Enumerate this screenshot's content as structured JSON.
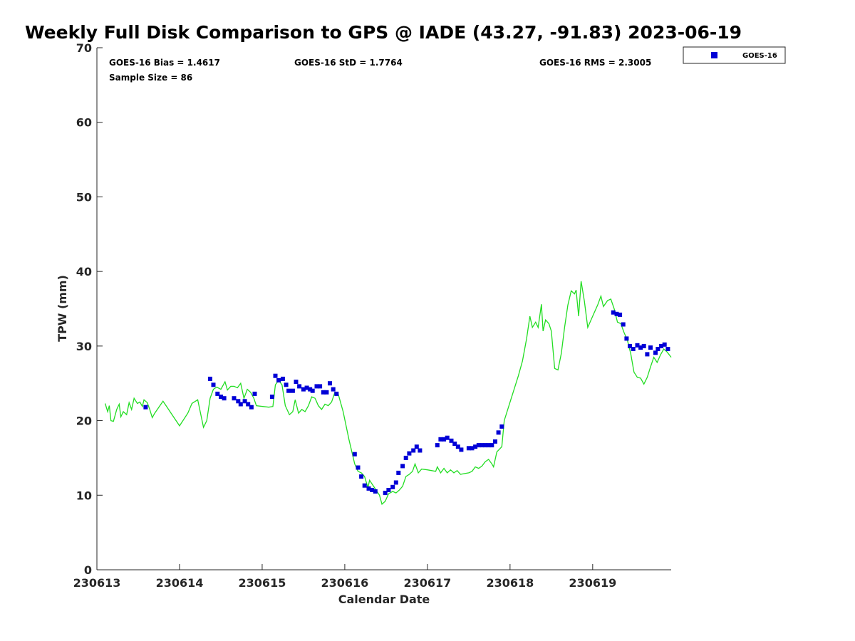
{
  "chart_data": {
    "type": "scatter",
    "title": "Weekly Full Disk Comparison to GPS @ IADE (43.27, -91.83) 2023-06-19",
    "xlabel": "Calendar Date",
    "ylabel": "TPW (mm)",
    "x_unit": "days",
    "xlim": [
      230613,
      230619.95
    ],
    "ylim": [
      0,
      70
    ],
    "y_ticks": [
      0,
      10,
      20,
      30,
      40,
      50,
      60,
      70
    ],
    "x_tick_labels": [
      "230613",
      "230614",
      "230615",
      "230616",
      "230617",
      "230618",
      "230619"
    ],
    "grid": false,
    "legend_position": "top-right",
    "colors": {
      "goes": "#0000d6",
      "gps": "#22dd22"
    },
    "stats": {
      "bias": "GOES-16 Bias = 1.4617",
      "std": "GOES-16 StD = 1.7764",
      "rms": "GOES-16 RMS = 2.3005",
      "sample": "Sample Size = 86"
    },
    "series": [
      {
        "name": "GOES-16",
        "style": "markers",
        "points": [
          [
            230613.59,
            21.8
          ],
          [
            230614.37,
            25.6
          ],
          [
            230614.41,
            24.8
          ],
          [
            230614.46,
            23.6
          ],
          [
            230614.5,
            23.2
          ],
          [
            230614.54,
            23.0
          ],
          [
            230614.66,
            23.0
          ],
          [
            230614.71,
            22.6
          ],
          [
            230614.74,
            22.2
          ],
          [
            230614.79,
            22.6
          ],
          [
            230614.83,
            22.2
          ],
          [
            230614.87,
            21.8
          ],
          [
            230614.91,
            23.6
          ],
          [
            230615.12,
            23.2
          ],
          [
            230615.16,
            26.0
          ],
          [
            230615.2,
            25.4
          ],
          [
            230615.25,
            25.6
          ],
          [
            230615.29,
            24.8
          ],
          [
            230615.32,
            24.0
          ],
          [
            230615.37,
            24.0
          ],
          [
            230615.41,
            25.2
          ],
          [
            230615.45,
            24.6
          ],
          [
            230615.5,
            24.2
          ],
          [
            230615.54,
            24.4
          ],
          [
            230615.58,
            24.2
          ],
          [
            230615.61,
            24.0
          ],
          [
            230615.66,
            24.6
          ],
          [
            230615.7,
            24.6
          ],
          [
            230615.74,
            23.8
          ],
          [
            230615.78,
            23.8
          ],
          [
            230615.82,
            25.0
          ],
          [
            230615.86,
            24.2
          ],
          [
            230615.9,
            23.6
          ],
          [
            230616.12,
            15.5
          ],
          [
            230616.16,
            13.7
          ],
          [
            230616.2,
            12.5
          ],
          [
            230616.24,
            11.3
          ],
          [
            230616.29,
            10.9
          ],
          [
            230616.33,
            10.7
          ],
          [
            230616.37,
            10.5
          ],
          [
            230616.49,
            10.3
          ],
          [
            230616.53,
            10.7
          ],
          [
            230616.58,
            11.1
          ],
          [
            230616.62,
            11.7
          ],
          [
            230616.65,
            13.0
          ],
          [
            230616.7,
            13.9
          ],
          [
            230616.74,
            15.0
          ],
          [
            230616.78,
            15.6
          ],
          [
            230616.83,
            16.0
          ],
          [
            230616.87,
            16.5
          ],
          [
            230616.91,
            16.0
          ],
          [
            230617.12,
            16.7
          ],
          [
            230617.16,
            17.5
          ],
          [
            230617.2,
            17.5
          ],
          [
            230617.24,
            17.7
          ],
          [
            230617.29,
            17.3
          ],
          [
            230617.33,
            16.9
          ],
          [
            230617.37,
            16.5
          ],
          [
            230617.41,
            16.1
          ],
          [
            230617.5,
            16.3
          ],
          [
            230617.54,
            16.3
          ],
          [
            230617.58,
            16.5
          ],
          [
            230617.62,
            16.7
          ],
          [
            230617.66,
            16.7
          ],
          [
            230617.7,
            16.7
          ],
          [
            230617.74,
            16.7
          ],
          [
            230617.78,
            16.7
          ],
          [
            230617.82,
            17.2
          ],
          [
            230617.86,
            18.4
          ],
          [
            230617.9,
            19.2
          ],
          [
            230619.25,
            34.5
          ],
          [
            230619.29,
            34.3
          ],
          [
            230619.33,
            34.2
          ],
          [
            230619.37,
            32.9
          ],
          [
            230619.41,
            31.0
          ],
          [
            230619.45,
            30.0
          ],
          [
            230619.49,
            29.6
          ],
          [
            230619.54,
            30.1
          ],
          [
            230619.58,
            29.8
          ],
          [
            230619.62,
            30.0
          ],
          [
            230619.66,
            28.9
          ],
          [
            230619.7,
            29.8
          ],
          [
            230619.76,
            29.1
          ],
          [
            230619.79,
            29.6
          ],
          [
            230619.83,
            30.0
          ],
          [
            230619.87,
            30.2
          ],
          [
            230619.91,
            29.6
          ]
        ]
      },
      {
        "style": "line",
        "points": [
          [
            230613.1,
            22.3
          ],
          [
            230613.13,
            21.2
          ],
          [
            230613.15,
            22.0
          ],
          [
            230613.17,
            20.0
          ],
          [
            230613.2,
            19.9
          ],
          [
            230613.24,
            21.5
          ],
          [
            230613.27,
            22.2
          ],
          [
            230613.29,
            20.5
          ],
          [
            230613.32,
            21.2
          ],
          [
            230613.36,
            20.8
          ],
          [
            230613.39,
            22.4
          ],
          [
            230613.42,
            21.5
          ],
          [
            230613.45,
            23.0
          ],
          [
            230613.49,
            22.3
          ],
          [
            230613.52,
            22.5
          ],
          [
            230613.55,
            21.9
          ],
          [
            230613.57,
            22.8
          ],
          [
            230613.61,
            22.4
          ],
          [
            230613.64,
            21.5
          ],
          [
            230613.67,
            20.4
          ],
          [
            230613.7,
            21.0
          ],
          [
            230613.8,
            22.6
          ],
          [
            230614.0,
            19.3
          ],
          [
            230614.1,
            21.0
          ],
          [
            230614.15,
            22.3
          ],
          [
            230614.22,
            22.8
          ],
          [
            230614.29,
            19.1
          ],
          [
            230614.33,
            20.0
          ],
          [
            230614.37,
            23.0
          ],
          [
            230614.41,
            24.2
          ],
          [
            230614.45,
            24.5
          ],
          [
            230614.5,
            24.2
          ],
          [
            230614.55,
            25.2
          ],
          [
            230614.58,
            24.1
          ],
          [
            230614.62,
            24.6
          ],
          [
            230614.66,
            24.6
          ],
          [
            230614.7,
            24.4
          ],
          [
            230614.74,
            25.0
          ],
          [
            230614.78,
            23.0
          ],
          [
            230614.82,
            24.2
          ],
          [
            230614.86,
            23.8
          ],
          [
            230614.9,
            23.0
          ],
          [
            230614.93,
            22.0
          ],
          [
            230615.08,
            21.8
          ],
          [
            230615.13,
            21.9
          ],
          [
            230615.16,
            24.8
          ],
          [
            230615.2,
            25.4
          ],
          [
            230615.24,
            24.8
          ],
          [
            230615.28,
            22.0
          ],
          [
            230615.33,
            20.8
          ],
          [
            230615.37,
            21.2
          ],
          [
            230615.4,
            22.8
          ],
          [
            230615.44,
            21.0
          ],
          [
            230615.48,
            21.5
          ],
          [
            230615.52,
            21.2
          ],
          [
            230615.56,
            22.0
          ],
          [
            230615.6,
            23.2
          ],
          [
            230615.64,
            23.0
          ],
          [
            230615.68,
            22.0
          ],
          [
            230615.72,
            21.5
          ],
          [
            230615.76,
            22.2
          ],
          [
            230615.8,
            22.0
          ],
          [
            230615.84,
            22.5
          ],
          [
            230615.88,
            23.8
          ],
          [
            230615.92,
            23.6
          ],
          [
            230615.98,
            21.2
          ],
          [
            230616.05,
            17.5
          ],
          [
            230616.12,
            14.2
          ],
          [
            230616.16,
            13.2
          ],
          [
            230616.2,
            13.0
          ],
          [
            230616.24,
            12.5
          ],
          [
            230616.28,
            11.0
          ],
          [
            230616.3,
            12.0
          ],
          [
            230616.33,
            11.5
          ],
          [
            230616.36,
            11.0
          ],
          [
            230616.39,
            10.5
          ],
          [
            230616.42,
            10.0
          ],
          [
            230616.45,
            8.8
          ],
          [
            230616.49,
            9.2
          ],
          [
            230616.53,
            10.2
          ],
          [
            230616.58,
            10.5
          ],
          [
            230616.62,
            10.3
          ],
          [
            230616.66,
            10.7
          ],
          [
            230616.7,
            11.2
          ],
          [
            230616.74,
            12.5
          ],
          [
            230616.78,
            12.8
          ],
          [
            230616.82,
            13.2
          ],
          [
            230616.85,
            14.2
          ],
          [
            230616.89,
            13.0
          ],
          [
            230616.93,
            13.5
          ],
          [
            230617.0,
            13.4
          ],
          [
            230617.1,
            13.2
          ],
          [
            230617.12,
            13.8
          ],
          [
            230617.16,
            13.0
          ],
          [
            230617.2,
            13.6
          ],
          [
            230617.24,
            13.0
          ],
          [
            230617.28,
            13.4
          ],
          [
            230617.32,
            13.0
          ],
          [
            230617.36,
            13.3
          ],
          [
            230617.4,
            12.8
          ],
          [
            230617.45,
            12.9
          ],
          [
            230617.5,
            13.0
          ],
          [
            230617.54,
            13.2
          ],
          [
            230617.58,
            13.8
          ],
          [
            230617.62,
            13.6
          ],
          [
            230617.66,
            13.9
          ],
          [
            230617.7,
            14.5
          ],
          [
            230617.74,
            14.8
          ],
          [
            230617.78,
            14.2
          ],
          [
            230617.8,
            13.8
          ],
          [
            230617.84,
            15.8
          ],
          [
            230617.9,
            16.5
          ],
          [
            230617.93,
            20.0
          ],
          [
            230618.0,
            22.5
          ],
          [
            230618.1,
            26.0
          ],
          [
            230618.15,
            28.0
          ],
          [
            230618.2,
            31.0
          ],
          [
            230618.24,
            34.0
          ],
          [
            230618.27,
            32.5
          ],
          [
            230618.31,
            33.2
          ],
          [
            230618.34,
            32.5
          ],
          [
            230618.38,
            35.6
          ],
          [
            230618.4,
            32.0
          ],
          [
            230618.43,
            33.5
          ],
          [
            230618.47,
            33.0
          ],
          [
            230618.5,
            32.0
          ],
          [
            230618.54,
            27.0
          ],
          [
            230618.58,
            26.8
          ],
          [
            230618.62,
            29.0
          ],
          [
            230618.66,
            32.5
          ],
          [
            230618.7,
            35.5
          ],
          [
            230618.74,
            37.4
          ],
          [
            230618.78,
            37.0
          ],
          [
            230618.8,
            37.5
          ],
          [
            230618.83,
            34.0
          ],
          [
            230618.86,
            38.7
          ],
          [
            230618.9,
            36.0
          ],
          [
            230618.94,
            32.5
          ],
          [
            230619.0,
            34.0
          ],
          [
            230619.06,
            35.5
          ],
          [
            230619.1,
            36.7
          ],
          [
            230619.13,
            35.3
          ],
          [
            230619.18,
            36.1
          ],
          [
            230619.22,
            36.3
          ],
          [
            230619.26,
            35.0
          ],
          [
            230619.3,
            33.2
          ],
          [
            230619.34,
            33.0
          ],
          [
            230619.38,
            31.8
          ],
          [
            230619.42,
            30.8
          ],
          [
            230619.46,
            29.0
          ],
          [
            230619.5,
            26.5
          ],
          [
            230619.54,
            25.8
          ],
          [
            230619.58,
            25.7
          ],
          [
            230619.62,
            24.9
          ],
          [
            230619.66,
            25.8
          ],
          [
            230619.7,
            27.2
          ],
          [
            230619.74,
            28.5
          ],
          [
            230619.78,
            27.8
          ],
          [
            230619.82,
            28.8
          ],
          [
            230619.86,
            29.6
          ],
          [
            230619.9,
            29.2
          ],
          [
            230619.95,
            28.5
          ]
        ]
      }
    ]
  }
}
